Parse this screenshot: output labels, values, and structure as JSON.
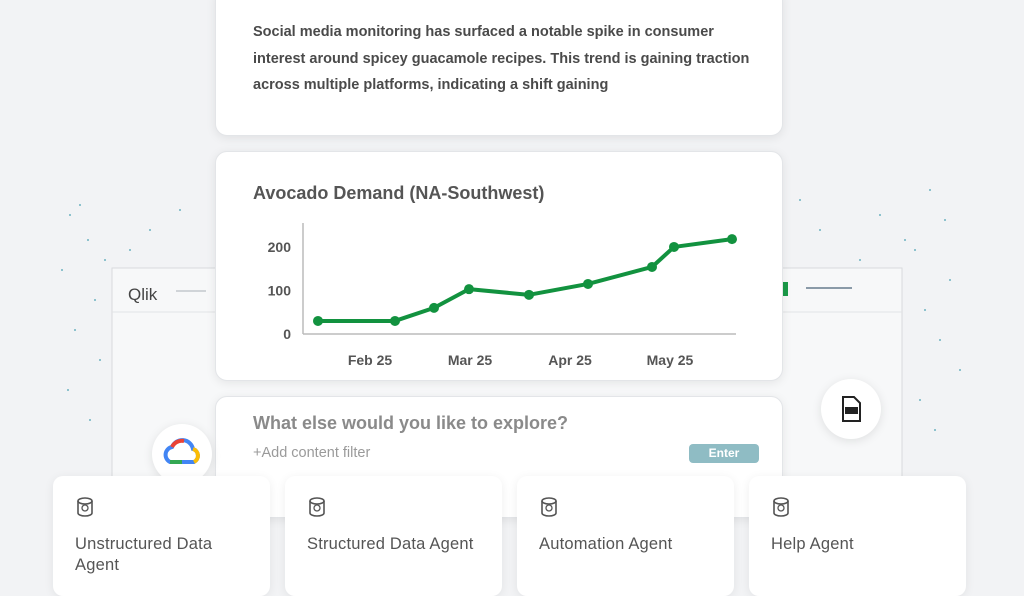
{
  "insight": {
    "text": "Social media monitoring has surfaced a notable spike in consumer interest around spicey guacamole recipes. This trend is gaining traction across multiple platforms, indicating a shift gaining"
  },
  "chart_data": {
    "type": "line",
    "title": "Avocado Demand (NA-Southwest)",
    "x": [
      1.48,
      2.25,
      2.64,
      2.99,
      3.59,
      4.18,
      4.82,
      5.04,
      5.62
    ],
    "series": [
      {
        "name": "Avocado Demand",
        "color": "#12923f",
        "values": [
          30,
          30,
          60,
          103,
          90,
          115,
          154,
          200,
          218
        ]
      }
    ],
    "xlim": [
      1.33,
      5.66
    ],
    "xticks": [
      {
        "value": 2,
        "label": "Feb 25"
      },
      {
        "value": 3,
        "label": "Mar 25"
      },
      {
        "value": 4,
        "label": "Apr 25"
      },
      {
        "value": 5,
        "label": "May 25"
      }
    ],
    "ylim": [
      0,
      255
    ],
    "yticks": [
      0,
      100,
      200
    ],
    "grid": false
  },
  "prompt": {
    "placeholder": "What else would you like to explore?",
    "filter": "+Add content filter",
    "button": "Enter"
  },
  "qlik_logo": "Qlik",
  "agents": [
    "Unstructured Data Agent",
    "Structured Data Agent",
    "Automation Agent",
    "Help Agent"
  ]
}
